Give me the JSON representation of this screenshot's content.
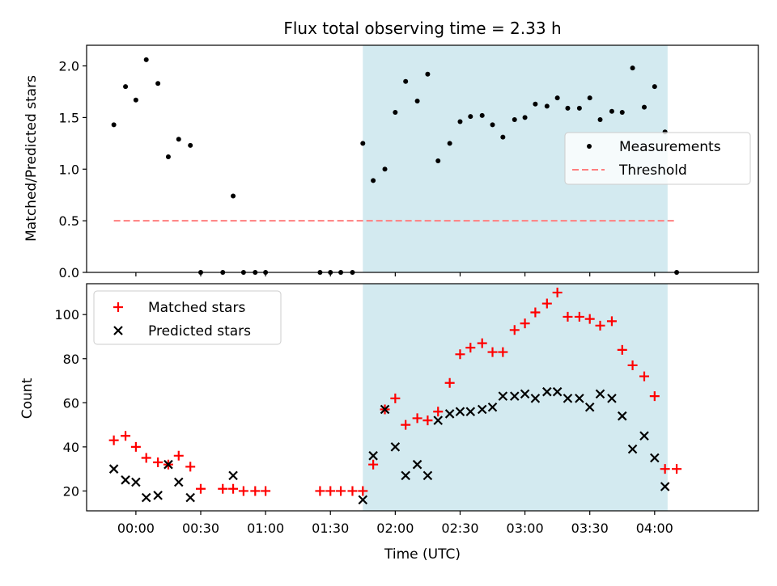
{
  "chart_data": [
    {
      "type": "scatter",
      "panel": "top",
      "title": "Flux total observing time = 2.33 h",
      "xlabel": "",
      "ylabel": "Matched/Predicted stars",
      "xlim_hours": [
        -0.38,
        4.8
      ],
      "ylim": [
        0,
        2.2
      ],
      "yticks": [
        0.0,
        0.5,
        1.0,
        1.5,
        2.0
      ],
      "ytick_labels": [
        "0.0",
        "0.5",
        "1.0",
        "1.5",
        "2.0"
      ],
      "shaded_span_hours": [
        1.75,
        4.1
      ],
      "shade_color": "#d3eaf0",
      "threshold": {
        "name": "Threshold",
        "value": 0.5,
        "x_range_hours": [
          -0.17,
          4.17
        ],
        "color": "#ff7f7f"
      },
      "legend": {
        "placement": "center-right",
        "entries": [
          "Measurements",
          "Threshold"
        ]
      },
      "series": [
        {
          "name": "Measurements",
          "color": "#000000",
          "x_hours": [
            -0.17,
            -0.08,
            0.0,
            0.08,
            0.17,
            0.25,
            0.33,
            0.42,
            0.5,
            0.67,
            0.75,
            0.83,
            0.92,
            1.0,
            1.42,
            1.5,
            1.58,
            1.67,
            1.75,
            1.83,
            1.92,
            2.0,
            2.08,
            2.17,
            2.25,
            2.33,
            2.42,
            2.5,
            2.58,
            2.67,
            2.75,
            2.83,
            2.92,
            3.0,
            3.08,
            3.17,
            3.25,
            3.33,
            3.42,
            3.5,
            3.58,
            3.67,
            3.75,
            3.83,
            3.92,
            4.0,
            4.08,
            4.17
          ],
          "y": [
            1.43,
            1.8,
            1.67,
            2.06,
            1.83,
            1.12,
            1.29,
            1.23,
            0.0,
            0.0,
            0.74,
            0.0,
            0.0,
            0.0,
            0.0,
            0.0,
            0.0,
            0.0,
            1.25,
            0.89,
            1.0,
            1.55,
            1.85,
            1.66,
            1.92,
            1.08,
            1.25,
            1.46,
            1.51,
            1.52,
            1.43,
            1.31,
            1.48,
            1.5,
            1.63,
            1.61,
            1.69,
            1.59,
            1.59,
            1.69,
            1.48,
            1.56,
            1.55,
            1.98,
            1.6,
            1.8,
            1.36,
            0.0
          ]
        }
      ]
    },
    {
      "type": "scatter",
      "panel": "bottom",
      "title": "",
      "xlabel": "Time (UTC)",
      "ylabel": "Count",
      "xlim_hours": [
        -0.38,
        4.8
      ],
      "ylim": [
        11,
        114
      ],
      "yticks": [
        20,
        40,
        60,
        80,
        100
      ],
      "ytick_labels": [
        "20",
        "40",
        "60",
        "80",
        "100"
      ],
      "xticks_hours": [
        0.0,
        0.5,
        1.0,
        1.5,
        2.0,
        2.5,
        3.0,
        3.5,
        4.0
      ],
      "xtick_labels": [
        "00:00",
        "00:30",
        "01:00",
        "01:30",
        "02:00",
        "02:30",
        "03:00",
        "03:30",
        "04:00"
      ],
      "shaded_span_hours": [
        1.75,
        4.1
      ],
      "shade_color": "#d3eaf0",
      "legend": {
        "placement": "top-left",
        "entries": [
          "Matched stars",
          "Predicted stars"
        ]
      },
      "series": [
        {
          "name": "Matched stars",
          "marker": "plus",
          "color": "#ff0000",
          "x_hours": [
            -0.17,
            -0.08,
            0.0,
            0.08,
            0.17,
            0.25,
            0.33,
            0.42,
            0.5,
            0.67,
            0.75,
            0.83,
            0.92,
            1.0,
            1.42,
            1.5,
            1.58,
            1.67,
            1.75,
            1.83,
            1.92,
            2.0,
            2.08,
            2.17,
            2.25,
            2.33,
            2.42,
            2.5,
            2.58,
            2.67,
            2.75,
            2.83,
            2.92,
            3.0,
            3.08,
            3.17,
            3.25,
            3.33,
            3.42,
            3.5,
            3.58,
            3.67,
            3.75,
            3.83,
            3.92,
            4.0,
            4.08,
            4.17
          ],
          "y": [
            43,
            45,
            40,
            35,
            33,
            32,
            36,
            31,
            21,
            21,
            21,
            20,
            20,
            20,
            20,
            20,
            20,
            20,
            20,
            32,
            57,
            62,
            50,
            53,
            52,
            56,
            69,
            82,
            85,
            87,
            83,
            83,
            93,
            96,
            101,
            105,
            110,
            99,
            99,
            98,
            95,
            97,
            84,
            77,
            72,
            63,
            30,
            30
          ]
        },
        {
          "name": "Predicted stars",
          "marker": "x",
          "color": "#000000",
          "x_hours": [
            -0.17,
            -0.08,
            0.0,
            0.08,
            0.17,
            0.25,
            0.33,
            0.42,
            0.75,
            1.75,
            1.83,
            1.92,
            2.0,
            2.08,
            2.17,
            2.25,
            2.33,
            2.42,
            2.5,
            2.58,
            2.67,
            2.75,
            2.83,
            2.92,
            3.0,
            3.08,
            3.17,
            3.25,
            3.33,
            3.42,
            3.5,
            3.58,
            3.67,
            3.75,
            3.83,
            3.92,
            4.0,
            4.08
          ],
          "y": [
            30,
            25,
            24,
            17,
            18,
            32,
            24,
            17,
            27,
            16,
            36,
            57,
            40,
            27,
            32,
            27,
            52,
            55,
            56,
            56,
            57,
            58,
            63,
            63,
            64,
            62,
            65,
            65,
            62,
            62,
            58,
            64,
            62,
            54,
            39,
            45,
            35,
            22
          ]
        }
      ]
    }
  ]
}
